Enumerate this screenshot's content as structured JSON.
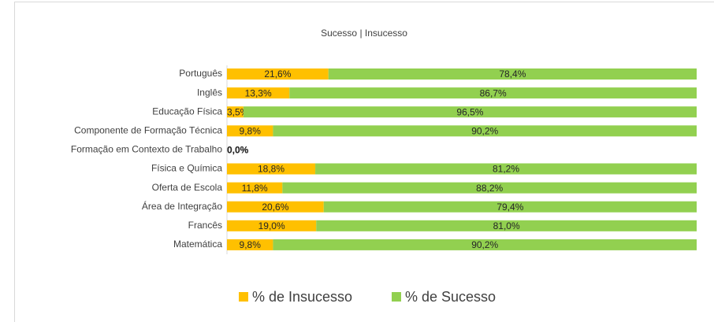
{
  "chart_data": {
    "type": "stacked_barh",
    "title": "Sucesso | Insucesso",
    "categories": [
      "Português",
      "Inglês",
      "Educação Física",
      "Componente de Formação Técnica",
      "Formação em Contexto de Trabalho",
      "Física e Química",
      "Oferta de Escola",
      "Área de Integração",
      "Francês",
      "Matemática"
    ],
    "xlim": [
      0,
      100
    ],
    "legend": "bottom",
    "series": [
      {
        "name": "% de Insucesso",
        "color": "#FFC000",
        "values": [
          21.6,
          13.3,
          3.5,
          9.8,
          0,
          18.8,
          11.8,
          20.6,
          19.0,
          9.8
        ],
        "value_labels": [
          "21,6%",
          "13,3%",
          "3,5%",
          "9,8%",
          "0,0%",
          "18,8%",
          "11,8%",
          "20,6%",
          "19,0%",
          "9,8%"
        ]
      },
      {
        "name": "% de Sucesso",
        "color": "#92D050",
        "values": [
          78.4,
          86.7,
          96.5,
          90.2,
          0,
          81.2,
          88.2,
          79.4,
          81.0,
          90.2
        ],
        "value_labels": [
          "78,4%",
          "86,7%",
          "96,5%",
          "90,2%",
          "0,0%",
          "81,2%",
          "88,2%",
          "79,4%",
          "81,0%",
          "90,2%"
        ]
      }
    ]
  }
}
